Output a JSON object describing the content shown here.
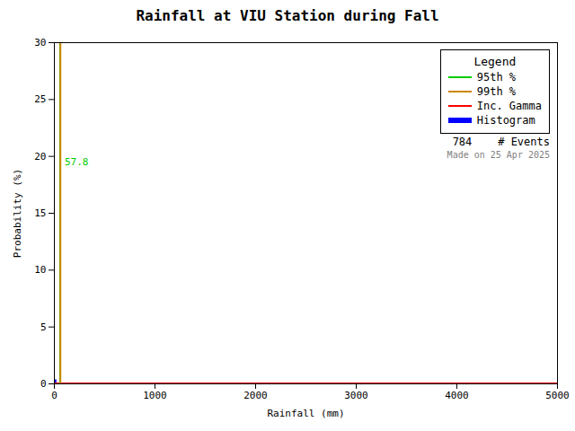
{
  "chart_data": {
    "type": "histogram",
    "title": "Rainfall at VIU Station during Fall",
    "xlabel": "Rainfall (mm)",
    "ylabel": "Probability (%)",
    "xlim": [
      0,
      5000
    ],
    "ylim": [
      0,
      30
    ],
    "xticks": [
      0,
      1000,
      2000,
      3000,
      4000,
      5000
    ],
    "yticks": [
      0,
      5,
      10,
      15,
      20,
      25,
      30
    ],
    "grid": false,
    "legend": "upper right",
    "legend_title": "Legend",
    "series": [
      {
        "name": "95th %",
        "color": "#00cc00",
        "type": "vline",
        "x": 57.8
      },
      {
        "name": "99th %",
        "color": "#cc8800",
        "type": "vline",
        "x": 60.0
      },
      {
        "name": "Inc. Gamma",
        "color": "#ff0000",
        "type": "line",
        "x": [
          0,
          5000
        ],
        "values": [
          0.04,
          0.04
        ]
      },
      {
        "name": "Histogram",
        "color": "#0000ff",
        "type": "bar",
        "bins": [
          0,
          25
        ],
        "values": [
          0.35
        ]
      }
    ],
    "annotations": [
      {
        "text": "57.8",
        "x": 57.8,
        "y": 19.5,
        "color": "#00cc00"
      },
      {
        "text": "784    # Events"
      },
      {
        "text": "Made on 25 Apr 2025",
        "color": "gray"
      }
    ]
  }
}
